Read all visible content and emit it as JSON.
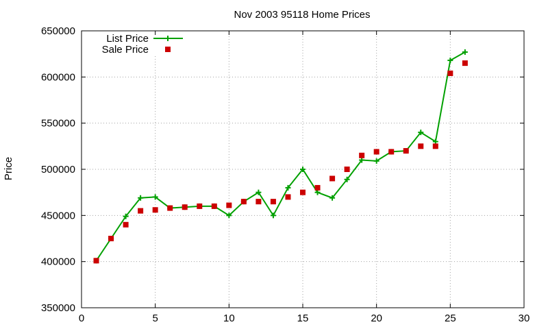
{
  "chart_data": {
    "type": "line",
    "title": "Nov 2003 95118 Home Prices",
    "xlabel": "",
    "ylabel": "Price",
    "xlim": [
      0,
      30
    ],
    "ylim": [
      350000,
      650000
    ],
    "xticks": [
      0,
      5,
      10,
      15,
      20,
      25,
      30
    ],
    "yticks": [
      350000,
      400000,
      450000,
      500000,
      550000,
      600000,
      650000
    ],
    "grid": true,
    "legend_position": "top-left",
    "series": [
      {
        "name": "List Price",
        "style": "line-plus",
        "color": "#00a000",
        "x": [
          1,
          2,
          3,
          4,
          5,
          6,
          7,
          8,
          9,
          10,
          11,
          12,
          13,
          14,
          15,
          16,
          17,
          18,
          19,
          20,
          21,
          22,
          23,
          24,
          25,
          26
        ],
        "values": [
          401000,
          425000,
          449000,
          469000,
          470000,
          458000,
          459000,
          460000,
          460000,
          450000,
          465000,
          475000,
          450000,
          480000,
          500000,
          475000,
          469000,
          489000,
          510000,
          509000,
          519000,
          520000,
          540000,
          530000,
          618000,
          627000
        ]
      },
      {
        "name": "Sale Price",
        "style": "points-square",
        "color": "#cc0000",
        "x": [
          1,
          2,
          3,
          4,
          5,
          6,
          7,
          8,
          9,
          10,
          11,
          12,
          13,
          14,
          15,
          16,
          17,
          18,
          19,
          20,
          21,
          22,
          23,
          24,
          25,
          26
        ],
        "values": [
          401000,
          425000,
          440000,
          455000,
          456000,
          458000,
          459000,
          460000,
          460000,
          461000,
          465000,
          465000,
          465000,
          470000,
          475000,
          480000,
          490000,
          500000,
          515000,
          519000,
          519000,
          520000,
          525000,
          525000,
          604000,
          615000
        ]
      }
    ]
  }
}
